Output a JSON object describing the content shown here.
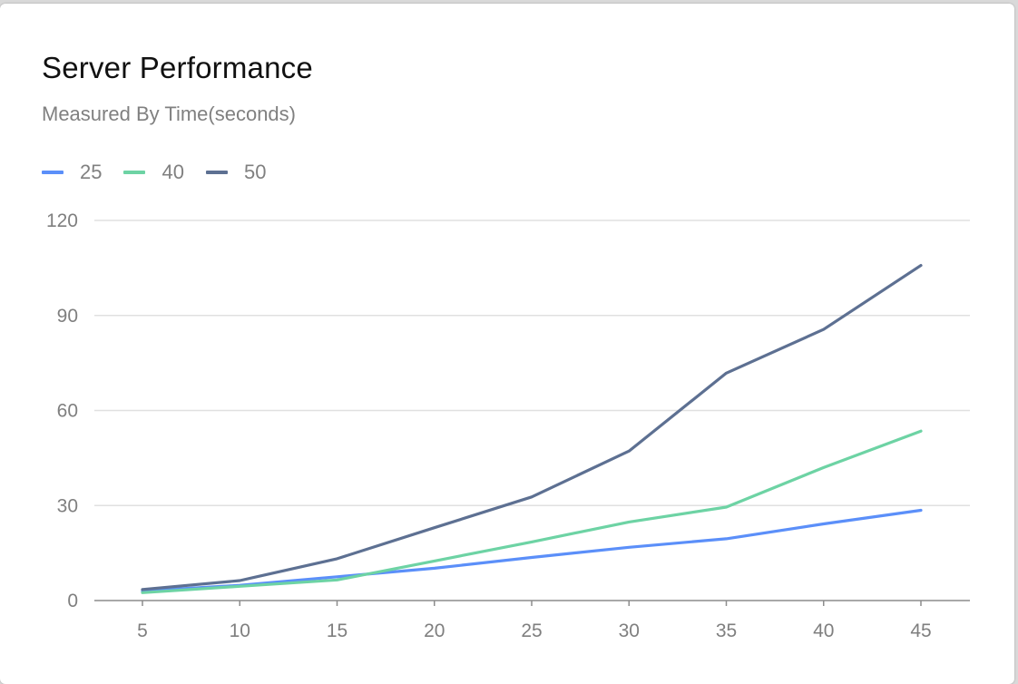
{
  "header": {
    "title": "Server Performance",
    "subtitle": "Measured By Time(seconds)"
  },
  "colors": {
    "series_25": "#5b8ff9",
    "series_40": "#6dd3a4",
    "series_50": "#5d7092",
    "grid": "#e0e0e0",
    "axis": "#8c8c8c"
  },
  "chart_data": {
    "type": "line",
    "title": "Server Performance",
    "subtitle": "Measured By Time(seconds)",
    "xlabel": "",
    "ylabel": "",
    "x": [
      5,
      10,
      15,
      20,
      25,
      30,
      35,
      40,
      45
    ],
    "ylim": [
      0,
      120
    ],
    "yticks": [
      0,
      30,
      60,
      90,
      120
    ],
    "grid": true,
    "legend_position": "top-left",
    "series": [
      {
        "name": "25",
        "color": "#5b8ff9",
        "values": [
          3,
          4.8,
          7.5,
          10.2,
          13.6,
          16.8,
          19.5,
          24.2,
          28.5
        ]
      },
      {
        "name": "40",
        "color": "#6dd3a4",
        "values": [
          2.5,
          4.5,
          6.5,
          12.5,
          18.5,
          24.8,
          29.5,
          42,
          53.5
        ]
      },
      {
        "name": "50",
        "color": "#5d7092",
        "values": [
          3.5,
          6.3,
          13.2,
          23,
          32.7,
          47.2,
          71.8,
          85.6,
          105.8
        ]
      }
    ]
  }
}
